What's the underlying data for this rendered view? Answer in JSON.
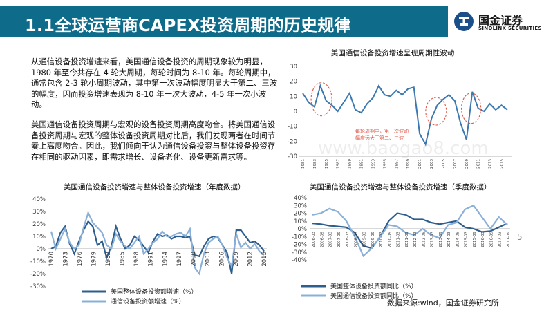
{
  "header": {
    "title": "1.1全球运营商CAPEX投资周期的历史规律",
    "logo_cn": "国金证券",
    "logo_en": "SINOLINK SECURITIES",
    "bar_color": "#0f6b8a"
  },
  "body": {
    "para1": "从通信设备投资增速来看，美国通信设备投资的周期现象较为明显，1980 年至今共存在 4 轮大周期，每轮时间为 8-10 年。每轮周期中，通常包含 2-3 轮小周期波动，其中第一次波动幅度明显大于第二、三波的幅度，因而投资增速表现为 8-10 年一次大波动，4-5 年一次小波动。",
    "para2": "美国通信设备投资周期与宏观的设备投资周期高度吻合。将美国通信设备投资周期与宏观的整体设备投资周期对比后，我们发现两者在时间节奏上高度吻合。因此，我们倾向于认为通信设备投资与整体设备投资存在相同的驱动因素，即需求增长、设备老化、设备更新需求等。"
  },
  "watermark": "www.baogao8.com",
  "page_number": "5",
  "source": "数据来源:wind，国金证券研究所",
  "chart_data": [
    {
      "type": "line",
      "title": "美国通信设备投资增速呈现周期性波动",
      "ylim": [
        -30,
        30
      ],
      "yticks": [
        30,
        20,
        10,
        0,
        -10,
        -20,
        -30
      ],
      "xtick_labels": [
        "1981",
        "1983",
        "1985",
        "1987",
        "1989",
        "1991",
        "1993",
        "1995",
        "1997",
        "1999",
        "2001",
        "2003",
        "2005",
        "2007",
        "2009",
        "2011",
        "2013",
        "2015"
      ],
      "annotation": "每轮周期中，第一次波动 幅度远大于第二、三波",
      "series": [
        {
          "color": "#3c78b0",
          "x": [
            1981,
            1982,
            1983,
            1984,
            1985,
            1986,
            1987,
            1988,
            1989,
            1990,
            1991,
            1992,
            1993,
            1994,
            1995,
            1996,
            1997,
            1998,
            1999,
            2000,
            2001,
            2002,
            2003,
            2004,
            2005,
            2006,
            2007,
            2008,
            2009,
            2010,
            2011,
            2012,
            2013,
            2014,
            2015,
            2016
          ],
          "values": [
            12,
            6,
            3,
            17,
            7,
            4,
            0,
            6,
            12,
            1,
            -1,
            5,
            9,
            17,
            11,
            10,
            14,
            11,
            15,
            16,
            -15,
            -22,
            -5,
            4,
            8,
            11,
            7,
            -8,
            -19,
            13,
            2,
            0,
            5,
            1,
            4,
            1
          ]
        }
      ],
      "legend": "none",
      "grid": false
    },
    {
      "type": "line",
      "title": "美国通信设备投资增速与整体设备投资增速（年度数据）",
      "ylim": [
        -30,
        40
      ],
      "yticks": [
        "40%",
        "30%",
        "20%",
        "10%",
        "0%",
        "-10%",
        "-20%",
        "-30%"
      ],
      "xtick_labels": [
        "1970",
        "1973",
        "1976",
        "1979",
        "1982",
        "1985",
        "1988",
        "1991",
        "1994",
        "1997",
        "2000",
        "2003",
        "2006",
        "2009",
        "2012",
        "2015"
      ],
      "series": [
        {
          "name": "美国整体设备投资额增速（%）",
          "color": "#2e5e8e",
          "x": [
            1970,
            1971,
            1972,
            1973,
            1974,
            1975,
            1976,
            1977,
            1978,
            1979,
            1980,
            1981,
            1982,
            1983,
            1984,
            1985,
            1986,
            1987,
            1988,
            1989,
            1990,
            1991,
            1992,
            1993,
            1994,
            1995,
            1996,
            1997,
            1998,
            1999,
            2000,
            2001,
            2002,
            2003,
            2004,
            2005,
            2006,
            2007,
            2008,
            2009,
            2010,
            2011,
            2012,
            2013,
            2014,
            2015,
            2016
          ],
          "values": [
            0,
            2,
            13,
            18,
            4,
            -4,
            6,
            15,
            22,
            18,
            3,
            6,
            -7,
            2,
            18,
            8,
            0,
            3,
            10,
            7,
            2,
            -3,
            6,
            12,
            10,
            11,
            8,
            10,
            10,
            9,
            10,
            -5,
            -6,
            2,
            8,
            10,
            9,
            3,
            -3,
            -20,
            15,
            15,
            10,
            5,
            6,
            3,
            -2
          ]
        },
        {
          "name": "通信设备投资额增速（%）",
          "color": "#8ab0d8",
          "x": [
            1970,
            1971,
            1972,
            1973,
            1974,
            1975,
            1976,
            1977,
            1978,
            1979,
            1980,
            1981,
            1982,
            1983,
            1984,
            1985,
            1986,
            1987,
            1988,
            1989,
            1990,
            1991,
            1992,
            1993,
            1994,
            1995,
            1996,
            1997,
            1998,
            1999,
            2000,
            2001,
            2002,
            2003,
            2004,
            2005,
            2006,
            2007,
            2008,
            2009,
            2010,
            2011,
            2012,
            2013,
            2014,
            2015,
            2016
          ],
          "values": [
            14,
            0,
            8,
            16,
            5,
            0,
            3,
            17,
            29,
            21,
            17,
            13,
            3,
            0,
            12,
            6,
            2,
            0,
            5,
            10,
            -4,
            0,
            5,
            8,
            14,
            10,
            10,
            12,
            13,
            10,
            16,
            -15,
            -20,
            -4,
            5,
            8,
            10,
            3,
            -7,
            -14,
            12,
            1,
            5,
            0,
            4,
            -2,
            -5
          ]
        }
      ],
      "legend": "bottom",
      "grid": false
    },
    {
      "type": "line",
      "title": "美国通信设备投资增速与整体设备投资增速（季度数据）",
      "ylim": [
        -40,
        40
      ],
      "yticks": [
        "40%",
        "30%",
        "20%",
        "10%",
        "0%",
        "-10%",
        "-20%",
        "-30%",
        "-40%"
      ],
      "xtick_labels": [
        "2006-03",
        "2006-09",
        "2007-03",
        "2007-09",
        "2008-03",
        "2008-09",
        "2009-03",
        "2009-09",
        "2010-03",
        "2010-09",
        "2011-03",
        "2011-09",
        "2012-03",
        "2012-09",
        "2013-03",
        "2013-09",
        "2014-03",
        "2014-09",
        "2015-03",
        "2015-09",
        "2016-03",
        "2016-09",
        "2017-03",
        "2017-09"
      ],
      "series": [
        {
          "name": "美国整体设备投资额同比（%）",
          "color": "#2e5e8e",
          "x": [
            "2006-03",
            "2006-09",
            "2007-03",
            "2007-09",
            "2008-03",
            "2008-09",
            "2009-03",
            "2009-09",
            "2010-03",
            "2010-09",
            "2011-03",
            "2011-09",
            "2012-03",
            "2012-09",
            "2013-03",
            "2013-09",
            "2014-03",
            "2014-09",
            "2015-03",
            "2015-09",
            "2016-03",
            "2016-09",
            "2017-03",
            "2017-09"
          ],
          "values": [
            7,
            6,
            4,
            3,
            2,
            -5,
            -22,
            -25,
            -10,
            10,
            20,
            18,
            12,
            12,
            8,
            6,
            8,
            10,
            2,
            0,
            -4,
            -3,
            2,
            7
          ]
        },
        {
          "name": "美国通信设备投资额同比（%）",
          "color": "#8ab0d8",
          "x": [
            "2006-03",
            "2006-09",
            "2007-03",
            "2007-09",
            "2008-03",
            "2008-09",
            "2009-03",
            "2009-09",
            "2010-03",
            "2010-09",
            "2011-03",
            "2011-09",
            "2012-03",
            "2012-09",
            "2013-03",
            "2013-09",
            "2014-03",
            "2014-09",
            "2015-03",
            "2015-09",
            "2016-03",
            "2016-09",
            "2017-03",
            "2017-09"
          ],
          "values": [
            18,
            20,
            26,
            22,
            10,
            -10,
            -35,
            -25,
            -10,
            5,
            3,
            -5,
            -8,
            0,
            -8,
            -12,
            5,
            8,
            25,
            30,
            15,
            0,
            15,
            5
          ]
        }
      ],
      "legend": "bottom",
      "grid": false
    }
  ]
}
